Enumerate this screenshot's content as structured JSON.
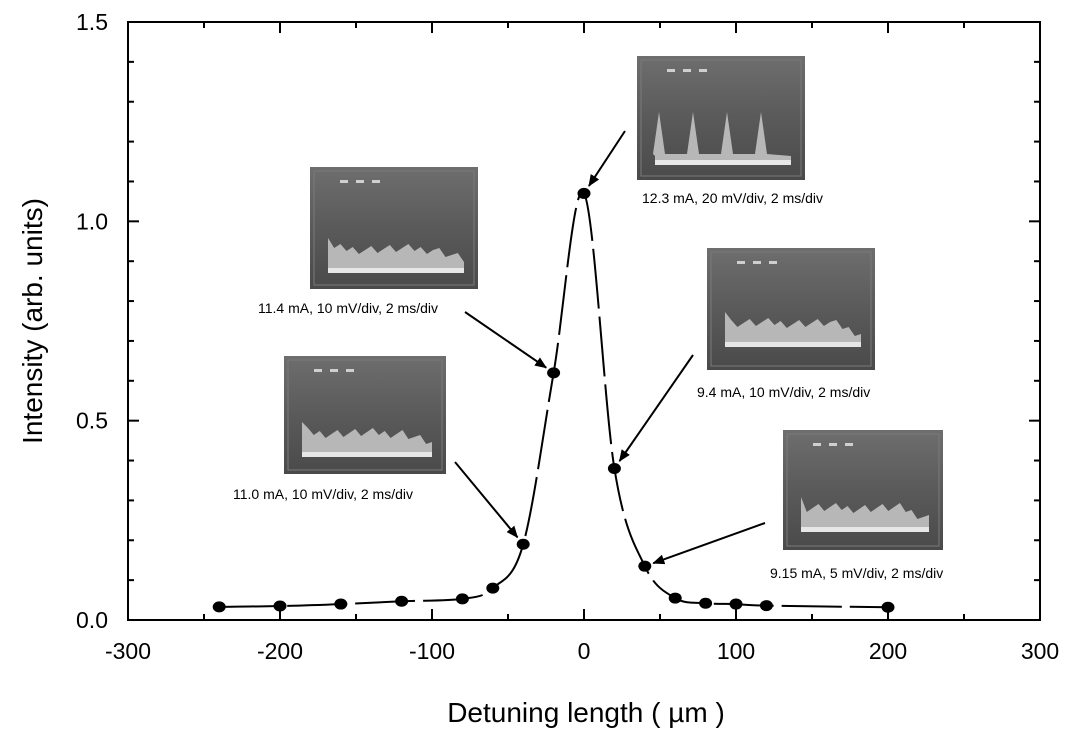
{
  "chart_data": {
    "type": "scatter",
    "title": "",
    "xlabel": "Detuning length ( µm )",
    "ylabel": "Intensity (arb. units)",
    "xlim": [
      -300,
      300
    ],
    "ylim": [
      0.0,
      1.5
    ],
    "x_ticks": [
      "-300",
      "-200",
      "-100",
      "0",
      "100",
      "200",
      "300"
    ],
    "y_ticks": [
      "0.0",
      "0.5",
      "1.0",
      "1.5"
    ],
    "grid": false,
    "series": [
      {
        "x": [
          -240,
          -200,
          -160,
          -120,
          -80,
          -60,
          -40,
          -20,
          0,
          20,
          40,
          60,
          80,
          100,
          120,
          200
        ],
        "y": [
          0.033,
          0.035,
          0.04,
          0.047,
          0.053,
          0.08,
          0.19,
          0.62,
          1.07,
          0.38,
          0.135,
          0.055,
          0.042,
          0.04,
          0.036,
          0.032
        ]
      }
    ],
    "annotations": [
      {
        "text": "12.3 mA, 20 mV/div, 2 ms/div",
        "target": {
          "x": 0,
          "y": 1.07
        }
      },
      {
        "text": "11.4 mA, 10 mV/div, 2 ms/div",
        "target": {
          "x": -20,
          "y": 0.62
        }
      },
      {
        "text": "9.4 mA, 10 mV/div, 2 ms/div",
        "target": {
          "x": 20,
          "y": 0.38
        }
      },
      {
        "text": "11.0 mA, 10 mV/div, 2 ms/div",
        "target": {
          "x": -40,
          "y": 0.19
        }
      },
      {
        "text": "9.15 mA, 5 mV/div, 2 ms/div",
        "target": {
          "x": 40,
          "y": 0.135
        }
      }
    ]
  }
}
